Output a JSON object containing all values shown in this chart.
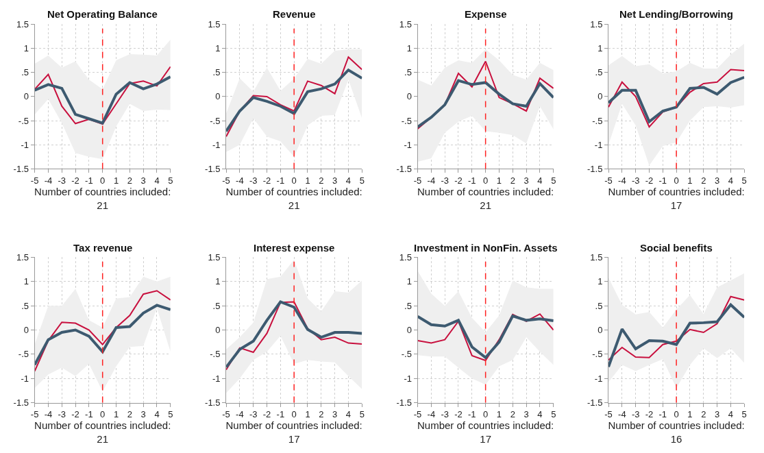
{
  "chart_data": [
    {
      "type": "line",
      "title": "Net Operating Balance",
      "xlabel": "Number of countries included:\n21",
      "x": [
        -5,
        -4,
        -3,
        -2,
        -1,
        0,
        1,
        2,
        3,
        4,
        5
      ],
      "xlim": [
        -5,
        5
      ],
      "xticks": [
        -5,
        -4,
        -3,
        -2,
        -1,
        0,
        1,
        2,
        3,
        4,
        5
      ],
      "ylim": [
        -1.5,
        1.5
      ],
      "yticks": [
        {
          "value": 1.5,
          "label": "1.5"
        },
        1,
        {
          "value": 0.5,
          "label": ".5"
        },
        0,
        {
          "value": -0.5,
          "label": "-.5"
        },
        -1,
        {
          "value": -1.5,
          "label": "-1.5"
        }
      ],
      "grid": true,
      "ref_lines": [
        {
          "axis": "x",
          "value": 0,
          "color": "#ff2020",
          "line_style": "dashed"
        }
      ],
      "series": [
        {
          "color": "#c8103e",
          "values": [
            0.15,
            0.46,
            -0.2,
            -0.56,
            -0.47,
            -0.57,
            -0.15,
            0.27,
            0.32,
            0.22,
            0.62
          ]
        },
        {
          "color": "#3d5a70",
          "values": [
            0.13,
            0.25,
            0.17,
            -0.37,
            -0.46,
            -0.55,
            0.05,
            0.29,
            0.16,
            0.26,
            0.41
          ],
          "upper": [
            0.68,
            0.85,
            0.6,
            0.73,
            0.35,
            0.15,
            0.75,
            0.88,
            0.87,
            0.85,
            1.18
          ],
          "lower": [
            -0.37,
            -0.05,
            -0.55,
            -1.17,
            -1.25,
            -1.3,
            -0.62,
            -0.15,
            -0.3,
            -0.27,
            -0.28
          ]
        }
      ]
    },
    {
      "type": "line",
      "title": "Revenue",
      "xlabel": "Number of countries included:\n21",
      "x": [
        -5,
        -4,
        -3,
        -2,
        -1,
        0,
        1,
        2,
        3,
        4,
        5
      ],
      "xlim": [
        -5,
        5
      ],
      "xticks": [
        -5,
        -4,
        -3,
        -2,
        -1,
        0,
        1,
        2,
        3,
        4,
        5
      ],
      "ylim": [
        -1.5,
        1.5
      ],
      "yticks": [
        {
          "value": 1.5,
          "label": "1.5"
        },
        1,
        {
          "value": 0.5,
          "label": ".5"
        },
        0,
        {
          "value": -0.5,
          "label": "-.5"
        },
        -1,
        {
          "value": -1.5,
          "label": "-1.5"
        }
      ],
      "grid": true,
      "ref_lines": [
        {
          "axis": "x",
          "value": 0,
          "color": "#ff2020",
          "line_style": "dashed"
        }
      ],
      "series": [
        {
          "color": "#c8103e",
          "values": [
            -0.83,
            -0.3,
            0.02,
            0.0,
            -0.17,
            -0.3,
            0.32,
            0.23,
            0.06,
            0.82,
            0.56
          ]
        },
        {
          "color": "#3d5a70",
          "values": [
            -0.72,
            -0.3,
            -0.02,
            -0.1,
            -0.2,
            -0.35,
            0.1,
            0.16,
            0.26,
            0.55,
            0.38
          ],
          "upper": [
            -0.35,
            0.38,
            0.1,
            0.6,
            0.12,
            0.37,
            0.78,
            0.68,
            0.95,
            0.98,
            0.98
          ],
          "lower": [
            -1.15,
            -1.0,
            -0.45,
            -0.83,
            -0.93,
            -1.25,
            -0.6,
            -0.4,
            -0.38,
            0.35,
            -0.45
          ]
        }
      ]
    },
    {
      "type": "line",
      "title": "Expense",
      "xlabel": "Number of countries included:\n21",
      "x": [
        -5,
        -4,
        -3,
        -2,
        -1,
        0,
        1,
        2,
        3,
        4,
        5
      ],
      "xlim": [
        -5,
        5
      ],
      "xticks": [
        -5,
        -4,
        -3,
        -2,
        -1,
        0,
        1,
        2,
        3,
        4,
        5
      ],
      "ylim": [
        -1.5,
        1.5
      ],
      "yticks": [
        {
          "value": 1.5,
          "label": "1.5"
        },
        1,
        {
          "value": 0.5,
          "label": ".5"
        },
        0,
        {
          "value": -0.5,
          "label": "-.5"
        },
        -1,
        {
          "value": -1.5,
          "label": "-1.5"
        }
      ],
      "grid": true,
      "ref_lines": [
        {
          "axis": "x",
          "value": 0,
          "color": "#ff2020",
          "line_style": "dashed"
        }
      ],
      "series": [
        {
          "color": "#c8103e",
          "values": [
            -0.67,
            -0.43,
            -0.17,
            0.48,
            0.2,
            0.73,
            -0.02,
            -0.15,
            -0.3,
            0.38,
            0.17
          ]
        },
        {
          "color": "#3d5a70",
          "values": [
            -0.63,
            -0.43,
            -0.17,
            0.33,
            0.25,
            0.29,
            0.05,
            -0.15,
            -0.2,
            0.27,
            -0.02
          ],
          "upper": [
            0.35,
            0.23,
            0.6,
            0.75,
            0.7,
            0.98,
            0.75,
            0.45,
            0.35,
            0.7,
            0.55
          ],
          "lower": [
            -1.35,
            -1.28,
            -0.75,
            -0.52,
            -0.4,
            -0.72,
            -0.75,
            -0.8,
            -0.97,
            -0.2,
            -0.68
          ]
        }
      ]
    },
    {
      "type": "line",
      "title": "Net Lending/Borrowing",
      "xlabel": "Number of countries included:\n17",
      "x": [
        -5,
        -4,
        -3,
        -2,
        -1,
        0,
        1,
        2,
        3,
        4,
        5
      ],
      "xlim": [
        -5,
        5
      ],
      "xticks": [
        -5,
        -4,
        -3,
        -2,
        -1,
        0,
        1,
        2,
        3,
        4,
        5
      ],
      "ylim": [
        -1.5,
        1.5
      ],
      "yticks": [
        {
          "value": 1.5,
          "label": "1.5"
        },
        1,
        {
          "value": 0.5,
          "label": ".5"
        },
        0,
        {
          "value": -0.5,
          "label": "-.5"
        },
        -1,
        {
          "value": -1.5,
          "label": "-1.5"
        }
      ],
      "grid": true,
      "ref_lines": [
        {
          "axis": "x",
          "value": 0,
          "color": "#ff2020",
          "line_style": "dashed"
        }
      ],
      "series": [
        {
          "color": "#c8103e",
          "values": [
            -0.22,
            0.3,
            0.0,
            -0.63,
            -0.32,
            -0.22,
            0.09,
            0.27,
            0.3,
            0.56,
            0.54
          ]
        },
        {
          "color": "#3d5a70",
          "values": [
            -0.13,
            0.13,
            0.13,
            -0.52,
            -0.3,
            -0.22,
            0.17,
            0.19,
            0.05,
            0.29,
            0.4
          ],
          "upper": [
            0.65,
            0.84,
            0.63,
            0.67,
            0.48,
            0.52,
            0.7,
            0.58,
            0.58,
            0.87,
            1.1
          ],
          "lower": [
            -1.0,
            -0.15,
            -0.6,
            -1.43,
            -1.03,
            -0.95,
            -0.5,
            -0.22,
            -0.2,
            -0.23,
            -0.18
          ]
        }
      ]
    },
    {
      "type": "line",
      "title": "Tax revenue",
      "xlabel": "Number of countries included:\n21",
      "x": [
        -5,
        -4,
        -3,
        -2,
        -1,
        0,
        1,
        2,
        3,
        4,
        5
      ],
      "xlim": [
        -5,
        5
      ],
      "xticks": [
        -5,
        -4,
        -3,
        -2,
        -1,
        0,
        1,
        2,
        3,
        4,
        5
      ],
      "ylim": [
        -1.5,
        1.5
      ],
      "yticks": [
        {
          "value": 1.5,
          "label": "1.5"
        },
        1,
        {
          "value": 0.5,
          "label": ".5"
        },
        0,
        {
          "value": -0.5,
          "label": "-.5"
        },
        -1,
        {
          "value": -1.5,
          "label": "-1.5"
        }
      ],
      "grid": true,
      "ref_lines": [
        {
          "axis": "x",
          "value": 0,
          "color": "#ff2020",
          "line_style": "dashed"
        }
      ],
      "series": [
        {
          "color": "#c8103e",
          "values": [
            -0.85,
            -0.22,
            0.16,
            0.14,
            0.0,
            -0.3,
            0.05,
            0.3,
            0.74,
            0.81,
            0.62
          ]
        },
        {
          "color": "#3d5a70",
          "values": [
            -0.72,
            -0.2,
            -0.05,
            0.0,
            -0.13,
            -0.45,
            0.05,
            0.07,
            0.35,
            0.51,
            0.42
          ],
          "upper": [
            -0.3,
            0.5,
            0.5,
            0.85,
            0.2,
            0.05,
            0.65,
            0.68,
            1.1,
            1.0,
            1.1
          ],
          "lower": [
            -1.2,
            -0.92,
            -0.78,
            -0.95,
            -0.7,
            -1.27,
            -0.75,
            -0.35,
            -0.33,
            0.45,
            -0.45
          ]
        }
      ]
    },
    {
      "type": "line",
      "title": "Interest expense",
      "xlabel": "Number of countries included:\n17",
      "x": [
        -5,
        -4,
        -3,
        -2,
        -1,
        0,
        1,
        2,
        3,
        4,
        5
      ],
      "xlim": [
        -5,
        5
      ],
      "xticks": [
        -5,
        -4,
        -3,
        -2,
        -1,
        0,
        1,
        2,
        3,
        4,
        5
      ],
      "ylim": [
        -1.5,
        1.5
      ],
      "yticks": [
        {
          "value": 1.5,
          "label": "1.5"
        },
        1,
        {
          "value": 0.5,
          "label": ".5"
        },
        0,
        {
          "value": -0.5,
          "label": "-.5"
        },
        -1,
        {
          "value": -1.5,
          "label": "-1.5"
        }
      ],
      "grid": true,
      "ref_lines": [
        {
          "axis": "x",
          "value": 0,
          "color": "#ff2020",
          "line_style": "dashed"
        }
      ],
      "series": [
        {
          "color": "#c8103e",
          "values": [
            -0.82,
            -0.37,
            -0.46,
            -0.07,
            0.57,
            0.58,
            0.03,
            -0.2,
            -0.15,
            -0.27,
            -0.29
          ]
        },
        {
          "color": "#3d5a70",
          "values": [
            -0.77,
            -0.4,
            -0.23,
            0.2,
            0.58,
            0.47,
            0.01,
            -0.15,
            -0.05,
            -0.05,
            -0.07
          ],
          "upper": [
            -0.4,
            -0.15,
            0.15,
            1.05,
            1.1,
            1.45,
            0.65,
            0.38,
            0.8,
            0.77,
            1.02
          ],
          "lower": [
            -1.3,
            -1.0,
            -0.62,
            -0.45,
            -0.12,
            -0.7,
            -0.62,
            -0.65,
            -0.67,
            -0.95,
            -1.22
          ]
        }
      ]
    },
    {
      "type": "line",
      "title": "Investment in NonFin. Assets",
      "xlabel": "Number of countries included:\n17",
      "x": [
        -5,
        -4,
        -3,
        -2,
        -1,
        0,
        1,
        2,
        3,
        4,
        5
      ],
      "xlim": [
        -5,
        5
      ],
      "xticks": [
        -5,
        -4,
        -3,
        -2,
        -1,
        0,
        1,
        2,
        3,
        4,
        5
      ],
      "ylim": [
        -1.5,
        1.5
      ],
      "yticks": [
        {
          "value": 1.5,
          "label": "1.5"
        },
        1,
        {
          "value": 0.5,
          "label": ".5"
        },
        0,
        {
          "value": -0.5,
          "label": "-.5"
        },
        -1,
        {
          "value": -1.5,
          "label": "-1.5"
        }
      ],
      "grid": true,
      "ref_lines": [
        {
          "axis": "x",
          "value": 0,
          "color": "#ff2020",
          "line_style": "dashed"
        }
      ],
      "series": [
        {
          "color": "#c8103e",
          "values": [
            -0.22,
            -0.27,
            -0.2,
            0.18,
            -0.53,
            -0.63,
            -0.2,
            0.32,
            0.18,
            0.33,
            0.0
          ]
        },
        {
          "color": "#3d5a70",
          "values": [
            0.28,
            0.11,
            0.08,
            0.2,
            -0.35,
            -0.57,
            -0.25,
            0.29,
            0.2,
            0.23,
            0.19
          ],
          "upper": [
            1.22,
            0.75,
            0.5,
            0.8,
            0.25,
            -0.05,
            0.3,
            1.02,
            0.88,
            0.85,
            0.85
          ],
          "lower": [
            -0.52,
            -0.55,
            -0.55,
            -0.78,
            -1.0,
            -1.13,
            -0.75,
            -0.62,
            -0.15,
            -0.45,
            -0.72
          ]
        }
      ]
    },
    {
      "type": "line",
      "title": "Social benefits",
      "xlabel": "Number of countries included:\n16",
      "x": [
        -5,
        -4,
        -3,
        -2,
        -1,
        0,
        1,
        2,
        3,
        4,
        5
      ],
      "xlim": [
        -5,
        5
      ],
      "xticks": [
        -5,
        -4,
        -3,
        -2,
        -1,
        0,
        1,
        2,
        3,
        4,
        5
      ],
      "ylim": [
        -1.5,
        1.5
      ],
      "yticks": [
        {
          "value": 1.5,
          "label": "1.5"
        },
        1,
        {
          "value": 0.5,
          "label": ".5"
        },
        0,
        {
          "value": -0.5,
          "label": "-.5"
        },
        -1,
        {
          "value": -1.5,
          "label": "-1.5"
        }
      ],
      "grid": true,
      "ref_lines": [
        {
          "axis": "x",
          "value": 0,
          "color": "#ff2020",
          "line_style": "dashed"
        }
      ],
      "series": [
        {
          "color": "#c8103e",
          "values": [
            -0.62,
            -0.36,
            -0.56,
            -0.57,
            -0.3,
            -0.23,
            0.01,
            -0.05,
            0.13,
            0.69,
            0.62
          ]
        },
        {
          "color": "#3d5a70",
          "values": [
            -0.76,
            0.02,
            -0.39,
            -0.22,
            -0.23,
            -0.3,
            0.14,
            0.15,
            0.17,
            0.52,
            0.26
          ],
          "upper": [
            1.08,
            0.52,
            0.32,
            0.37,
            0.05,
            0.42,
            0.72,
            0.33,
            0.88,
            1.02,
            1.17
          ],
          "lower": [
            -1.08,
            -0.72,
            -0.85,
            -0.72,
            -0.6,
            -1.2,
            -0.72,
            -0.38,
            -0.58,
            -0.38,
            -0.68
          ]
        }
      ]
    }
  ]
}
